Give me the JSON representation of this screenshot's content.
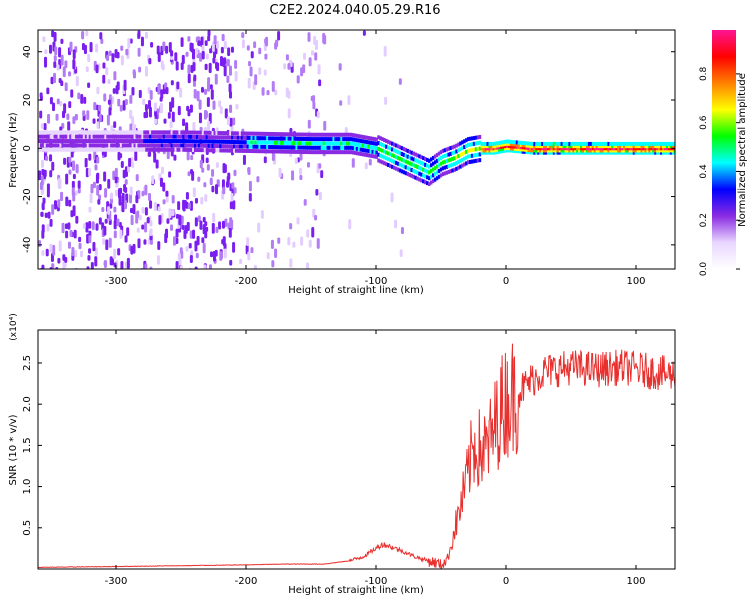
{
  "title": "C2E2.2024.040.05.29.R16",
  "chart_data": [
    {
      "type": "heatmap",
      "xlabel": "Height of straight line (km)",
      "ylabel": "Frequency (Hz)",
      "xlim": [
        -360,
        130
      ],
      "ylim": [
        -50,
        49
      ],
      "xticks": [
        -300,
        -200,
        -100,
        0,
        100
      ],
      "yticks": [
        -40,
        -20,
        0,
        20,
        40
      ],
      "colorbar": {
        "label": "Normalized spectral amplitude",
        "range": [
          0,
          0.98
        ],
        "ticks": [
          0.0,
          0.2,
          0.4,
          0.6,
          0.8
        ],
        "colormap": [
          "#ffffff",
          "#e8d6ff",
          "#8a2be2",
          "#0000ff",
          "#00ffff",
          "#00ff00",
          "#ffff00",
          "#ff8000",
          "#ff0000",
          "#ff1493"
        ]
      },
      "ridge": {
        "x": [
          -360,
          -300,
          -250,
          -200,
          -150,
          -120,
          -100,
          -80,
          -60,
          -50,
          -40,
          -30,
          -20,
          -10,
          0,
          20,
          50,
          100,
          130
        ],
        "y": [
          3,
          3,
          3,
          2.5,
          2,
          2,
          0,
          -5,
          -10,
          -6,
          -4,
          -1,
          0,
          0,
          1,
          0,
          0,
          0,
          0
        ]
      },
      "grid": false
    },
    {
      "type": "line",
      "xlabel": "Height of straight line (km)",
      "ylabel": "SNR (10 * v/v)",
      "multiplier": "(x10⁴)",
      "xlim": [
        -360,
        130
      ],
      "ylim": [
        0,
        2.9
      ],
      "xticks": [
        -300,
        -200,
        -100,
        0,
        100
      ],
      "yticks": [
        0.5,
        1.0,
        1.5,
        2.0,
        2.5
      ],
      "yticklabels": [
        "0.5",
        "1.0",
        "1.5",
        "2.0",
        "2.5"
      ],
      "series": [
        {
          "color": "#e8302e",
          "x": [
            -360,
            -300,
            -250,
            -200,
            -170,
            -140,
            -120,
            -110,
            -100,
            -95,
            -90,
            -80,
            -70,
            -60,
            -55,
            -50,
            -45,
            -42,
            -40,
            -35,
            -30,
            -25,
            -20,
            -15,
            -10,
            -5,
            0,
            10,
            20,
            30,
            50,
            70,
            90,
            110,
            130
          ],
          "values": [
            0.02,
            0.03,
            0.04,
            0.05,
            0.06,
            0.06,
            0.1,
            0.15,
            0.25,
            0.3,
            0.28,
            0.22,
            0.15,
            0.1,
            0.08,
            0.05,
            0.12,
            0.3,
            0.45,
            0.75,
            1.1,
            1.5,
            1.45,
            1.45,
            1.65,
            1.9,
            2.05,
            2.15,
            2.3,
            2.4,
            2.45,
            2.42,
            2.45,
            2.4,
            2.35
          ]
        }
      ],
      "grid": false
    }
  ]
}
